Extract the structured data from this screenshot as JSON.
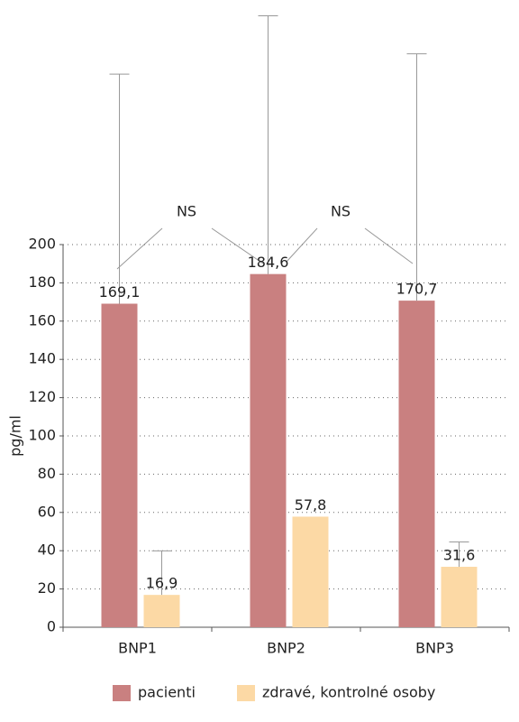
{
  "chart_data": {
    "type": "bar",
    "y_label": "pg/ml",
    "categories": [
      "BNP1",
      "BNP2",
      "BNP3"
    ],
    "series": [
      {
        "name": "pacienti",
        "color": "#c98080",
        "values": [
          169.1,
          184.6,
          170.7
        ],
        "value_labels": [
          "169,1",
          "184,6",
          "170,7"
        ],
        "errors": [
          120,
          135,
          129
        ]
      },
      {
        "name": "zdravé, kontrolné osoby",
        "color": "#fcd9a5",
        "values": [
          16.9,
          57.8,
          31.6
        ],
        "value_labels": [
          "16,9",
          "57,8",
          "31,6"
        ],
        "errors": [
          23,
          null,
          13
        ]
      }
    ],
    "annotations": [
      "NS",
      "NS"
    ],
    "ylim": [
      0,
      200
    ],
    "yticks": [
      0,
      20,
      40,
      60,
      80,
      100,
      120,
      140,
      160,
      180,
      200
    ],
    "grid": true
  }
}
